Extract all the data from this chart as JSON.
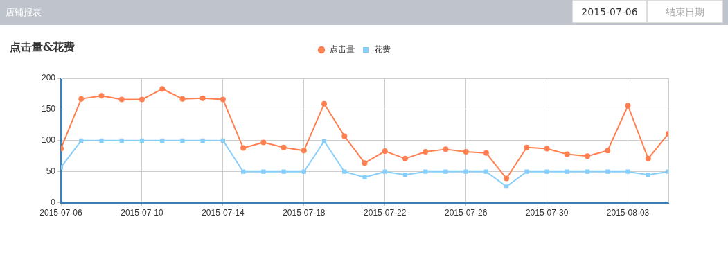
{
  "chart_data": {
    "type": "line",
    "title": "点击量&花费",
    "annotations": [
      "店铺报表",
      "2015-07-06",
      "结束日期"
    ],
    "x": [
      "2015-07-06",
      "2015-07-07",
      "2015-07-08",
      "2015-07-09",
      "2015-07-10",
      "2015-07-11",
      "2015-07-12",
      "2015-07-13",
      "2015-07-14",
      "2015-07-15",
      "2015-07-16",
      "2015-07-17",
      "2015-07-18",
      "2015-07-19",
      "2015-07-20",
      "2015-07-21",
      "2015-07-22",
      "2015-07-23",
      "2015-07-24",
      "2015-07-25",
      "2015-07-26",
      "2015-07-27",
      "2015-07-28",
      "2015-07-29",
      "2015-07-30",
      "2015-07-31",
      "2015-08-01",
      "2015-08-02",
      "2015-08-03",
      "2015-08-04",
      "2015-08-05"
    ],
    "series": [
      {
        "name": "点击量",
        "color": "#ff7f50",
        "marker": "circle",
        "values": [
          87,
          167,
          172,
          166,
          166,
          183,
          167,
          168,
          166,
          88,
          97,
          89,
          84,
          159,
          107,
          64,
          83,
          71,
          82,
          86,
          82,
          80,
          39,
          89,
          87,
          78,
          75,
          84,
          156,
          71,
          111
        ]
      },
      {
        "name": "花费",
        "color": "#87cefa",
        "marker": "square",
        "values": [
          57,
          100,
          100,
          100,
          100,
          100,
          100,
          100,
          100,
          50,
          50,
          50,
          50,
          99,
          50,
          41,
          50,
          45,
          50,
          50,
          50,
          50,
          26,
          50,
          50,
          50,
          50,
          50,
          50,
          45,
          50
        ]
      }
    ],
    "xlim": [
      "2015-07-06",
      "2015-08-05"
    ],
    "xticks": [
      "2015-07-06",
      "2015-07-10",
      "2015-07-14",
      "2015-07-18",
      "2015-07-22",
      "2015-07-26",
      "2015-07-30",
      "2015-08-03"
    ],
    "ylim": [
      0,
      200
    ],
    "yticks": [
      0,
      50,
      100,
      150,
      200
    ],
    "grid": true,
    "legend": "top",
    "line_style": "solid"
  }
}
